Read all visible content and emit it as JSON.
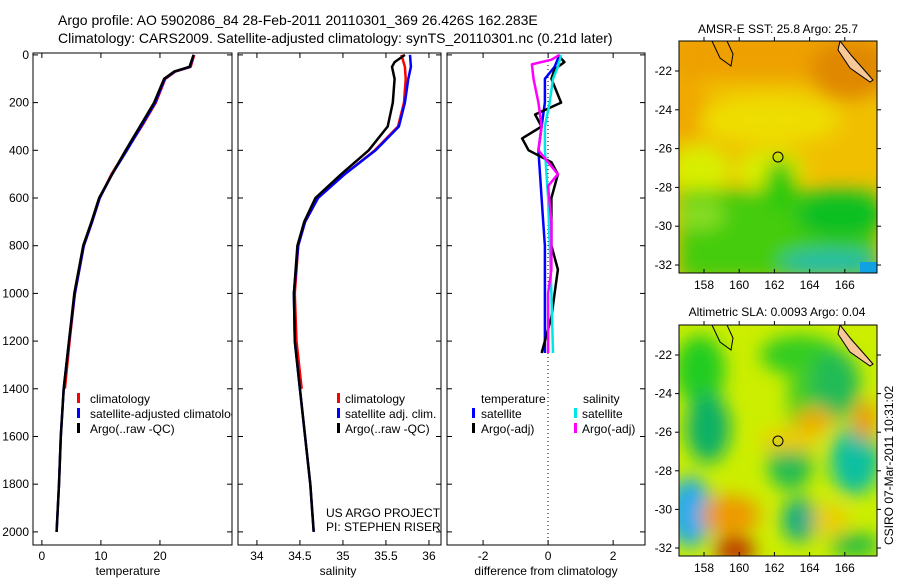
{
  "title_line1": "Argo profile: AO 5902086_84 28-Feb-2011 20110301_369 26.426S 162.283E",
  "title_line2": "Climatology: CARS2009. Satellite-adjusted climatology: synTS_20110301.nc (0.21d later)",
  "credit": "CSIRO 07-Mar-2011 10:31:02",
  "project_line1": "US ARGO PROJECT",
  "project_line2": "PI: STEPHEN RISER",
  "colors": {
    "climatology": "#ff0000",
    "satellite": "#0000ff",
    "argo": "#000000",
    "salinity_satellite": "#00e5e5",
    "salinity_argo": "#ff00ff"
  },
  "chart_data": [
    {
      "type": "line",
      "xlabel": "temperature",
      "ylabel": "",
      "xlim": [
        -1.5,
        32.2
      ],
      "ylim": [
        2055,
        -8
      ],
      "xticks": [
        "0",
        "10",
        "20"
      ],
      "xtick_values": [
        0,
        10,
        20
      ],
      "yticks": [
        "0",
        "200",
        "400",
        "600",
        "800",
        "1000",
        "1200",
        "1400",
        "1600",
        "1800",
        "2000"
      ],
      "ytick_values": [
        0,
        200,
        400,
        600,
        800,
        1000,
        1200,
        1400,
        1600,
        1800,
        2000
      ],
      "legend": [
        "climatology",
        "satellite-adjusted climatology",
        "Argo(..raw -QC)"
      ],
      "series": [
        {
          "name": "climatology",
          "color": "#ff0000",
          "depth": [
            0,
            50,
            70,
            100,
            200,
            300,
            400,
            500,
            600,
            700,
            800,
            1000,
            1200,
            1400
          ],
          "values": [
            25.8,
            25.2,
            22.6,
            20.9,
            19.3,
            16.9,
            14.3,
            11.8,
            9.8,
            8.5,
            7.1,
            5.6,
            4.7,
            3.9
          ]
        },
        {
          "name": "satellite-adjusted climatology",
          "color": "#0000ff",
          "depth": [
            0,
            50,
            70,
            100,
            200,
            300,
            400,
            500,
            600,
            700,
            800,
            1000,
            1200,
            1400,
            1600,
            1800,
            2000
          ],
          "values": [
            25.7,
            25.1,
            22.5,
            20.8,
            19.2,
            16.8,
            14.4,
            11.9,
            9.8,
            8.5,
            7.1,
            5.6,
            4.6,
            3.7,
            3.2,
            2.9,
            2.5
          ]
        },
        {
          "name": "Argo(..raw -QC)",
          "color": "#000000",
          "depth": [
            0,
            50,
            70,
            100,
            200,
            300,
            400,
            500,
            600,
            700,
            800,
            1000,
            1200,
            1400,
            1600,
            1800,
            2000
          ],
          "values": [
            25.7,
            25.0,
            22.4,
            20.7,
            19.0,
            16.6,
            14.2,
            11.9,
            9.7,
            8.4,
            7.0,
            5.5,
            4.6,
            3.7,
            3.2,
            2.9,
            2.5
          ]
        }
      ]
    },
    {
      "type": "line",
      "xlabel": "salinity",
      "xlim": [
        33.78,
        36.14
      ],
      "ylim": [
        2055,
        -8
      ],
      "xticks": [
        "34",
        "34.5",
        "35",
        "35.5",
        "36"
      ],
      "xtick_values": [
        34,
        34.5,
        35,
        35.5,
        36
      ],
      "legend": [
        "climatology",
        "satellite adj. clim.",
        "Argo(..raw -QC)"
      ],
      "series": [
        {
          "name": "climatology",
          "color": "#ff0000",
          "depth": [
            0,
            50,
            100,
            200,
            300,
            400,
            500,
            600,
            700,
            800,
            1000,
            1200,
            1400
          ],
          "values": [
            35.68,
            35.72,
            35.73,
            35.71,
            35.64,
            35.37,
            35.02,
            34.71,
            34.56,
            34.48,
            34.44,
            34.46,
            34.52
          ]
        },
        {
          "name": "satellite adj. clim.",
          "color": "#0000ff",
          "depth": [
            0,
            50,
            100,
            200,
            300,
            400,
            500,
            600,
            700,
            800,
            1000,
            1200,
            1400,
            1600,
            1800,
            2000
          ],
          "values": [
            35.78,
            35.79,
            35.76,
            35.72,
            35.65,
            35.38,
            35.02,
            34.71,
            34.56,
            34.48,
            34.43,
            34.44,
            34.5,
            34.56,
            34.62,
            34.66
          ]
        },
        {
          "name": "Argo(..raw -QC)",
          "color": "#000000",
          "depth": [
            0,
            30,
            50,
            100,
            200,
            300,
            400,
            500,
            600,
            700,
            800,
            1000,
            1200,
            1400,
            1600,
            1800,
            2000
          ],
          "values": [
            35.72,
            35.6,
            35.57,
            35.6,
            35.58,
            35.52,
            35.3,
            34.98,
            34.68,
            34.55,
            34.47,
            34.43,
            34.44,
            34.5,
            34.56,
            34.62,
            34.66
          ]
        }
      ]
    },
    {
      "type": "line",
      "xlabel": "difference from climatology",
      "xlim": [
        -3.11,
        2.98
      ],
      "ylim": [
        2055,
        -8
      ],
      "xticks": [
        "-2",
        "0",
        "2"
      ],
      "xtick_values": [
        -2,
        0,
        2
      ],
      "legend_headers": [
        "temperature",
        "salinity"
      ],
      "legend": [
        "satellite",
        "Argo(-adj)",
        "satellite",
        "Argo(-adj)"
      ],
      "series": [
        {
          "name": "temperature satellite",
          "color": "#0000ff",
          "depth": [
            0,
            50,
            100,
            200,
            300,
            400,
            500,
            600,
            700,
            800,
            1000,
            1200,
            1250
          ],
          "values": [
            0.35,
            0.2,
            -0.1,
            -0.1,
            -0.2,
            -0.3,
            -0.25,
            -0.2,
            -0.15,
            -0.1,
            -0.1,
            -0.1,
            -0.1
          ]
        },
        {
          "name": "temperature Argo(-adj)",
          "color": "#000000",
          "depth": [
            0,
            30,
            60,
            100,
            200,
            250,
            300,
            350,
            400,
            450,
            500,
            600,
            800,
            900,
            1000,
            1100,
            1200,
            1250
          ],
          "values": [
            0.3,
            0.5,
            0.2,
            0.1,
            0.4,
            -0.4,
            -0.2,
            -0.8,
            -0.6,
            0.1,
            0.3,
            0.1,
            0.1,
            0.3,
            0.2,
            0.1,
            -0.1,
            -0.2
          ]
        },
        {
          "name": "salinity satellite",
          "color": "#00e5e5",
          "depth": [
            0,
            50,
            100,
            200,
            300,
            400,
            500,
            600,
            800,
            1000,
            1250
          ],
          "values": [
            0.4,
            0.3,
            0.15,
            0.05,
            -0.1,
            -0.1,
            -0.05,
            0,
            0.05,
            0.1,
            0.15
          ]
        },
        {
          "name": "salinity Argo(-adj)",
          "color": "#ff00ff",
          "depth": [
            0,
            20,
            40,
            100,
            200,
            300,
            400,
            450,
            500,
            550,
            700,
            900,
            1000,
            1250
          ],
          "values": [
            0.35,
            0.1,
            -0.5,
            -0.45,
            -0.3,
            -0.2,
            -0.3,
            0.0,
            0.3,
            0.0,
            0.1,
            0.1,
            0.0,
            0.0
          ]
        }
      ]
    }
  ],
  "maps": [
    {
      "title": "AMSR-E SST: 25.8 Argo: 25.7",
      "lat_ticks": [
        "-22",
        "-24",
        "-26",
        "-28",
        "-30",
        "-32"
      ],
      "lon_ticks": [
        "158",
        "160",
        "162",
        "164",
        "166"
      ],
      "marker": {
        "lon": 162.3,
        "lat": -26.45
      }
    },
    {
      "title": "Altimetric SLA: 0.0093 Argo: 0.04",
      "lat_ticks": [
        "-22",
        "-24",
        "-26",
        "-28",
        "-30",
        "-32"
      ],
      "lon_ticks": [
        "158",
        "160",
        "162",
        "164",
        "166"
      ],
      "marker": {
        "lon": 162.3,
        "lat": -26.45
      }
    }
  ]
}
